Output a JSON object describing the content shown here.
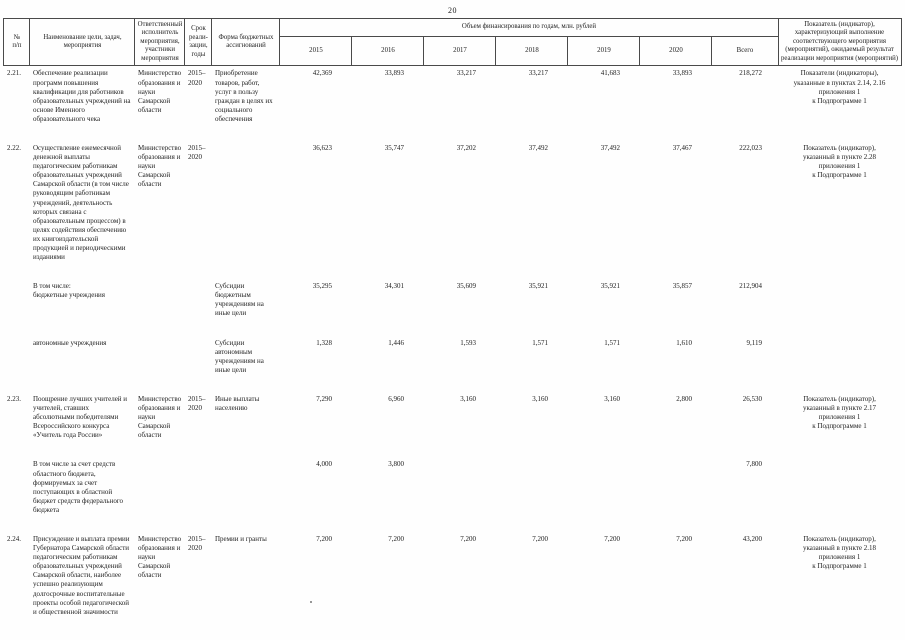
{
  "page_number": "20",
  "header": {
    "num": "№\nп/п",
    "name": "Наименование цели, задач, мероприятия",
    "responsible": "Ответственный исполнитель мероприятия, участники мероприятия",
    "term": "Срок реали-зации, годы",
    "form": "Форма бюджетных ассигнований",
    "funding_group": "Объем финансирования по годам, млн. рублей",
    "years": [
      "2015",
      "2016",
      "2017",
      "2018",
      "2019",
      "2020"
    ],
    "total": "Всего",
    "indicator": "Показатель (индикатор), характеризующий выполнение соответствующего мероприятия (мероприятий), ожидаемый результат реализации мероприятия (мероприятий)"
  },
  "rows": [
    {
      "num": "2.21.",
      "name": "Обеспечение реализации программ повышения квалификации для работников образовательных учреждений на основе Именного образовательного чека",
      "responsible": "Министерство образования и науки Самарской области",
      "term": "2015–\n2020",
      "form": "Приобретение товаров, работ, услуг в пользу граждан в целях их социального обеспечения",
      "values": [
        "42,369",
        "33,893",
        "33,217",
        "33,217",
        "41,683",
        "33,893"
      ],
      "total": "218,272",
      "indicator": "Показатели (индикаторы),\nуказанные в пунктах 2.14, 2.16\nприложения 1\nк Подпрограмме 1"
    },
    {
      "num": "2.22.",
      "name": "Осуществление ежемесячной денежной выплаты педагогическим работникам образовательных учреждений Самарской области (в том числе руководящим работникам учреждений, деятельность которых связана с образовательным процессом) в целях содействия обеспечению их книгоиздательской продукцией и периодическими изданиями",
      "responsible": "Министерство образования и науки Самарской области",
      "term": "2015–\n2020",
      "form": "",
      "values": [
        "36,623",
        "35,747",
        "37,202",
        "37,492",
        "37,492",
        "37,467"
      ],
      "total": "222,023",
      "indicator": "Показатель (индикатор),\nуказанный в пункте 2.28\nприложения 1\nк Подпрограмме 1"
    },
    {
      "num": "",
      "name": "В том числе:\nбюджетные учреждения",
      "responsible": "",
      "term": "",
      "form": "Субсидии бюджетным учреждениям на иные цели",
      "values": [
        "35,295",
        "34,301",
        "35,609",
        "35,921",
        "35,921",
        "35,857"
      ],
      "total": "212,904",
      "indicator": ""
    },
    {
      "num": "",
      "name": "автономные учреждения",
      "responsible": "",
      "term": "",
      "form": "Субсидии автономным учреждениям на иные цели",
      "values": [
        "1,328",
        "1,446",
        "1,593",
        "1,571",
        "1,571",
        "1,610"
      ],
      "total": "9,119",
      "indicator": ""
    },
    {
      "num": "2.23.",
      "name": "Поощрение лучших учителей и учителей, ставших абсолютными победителями Всероссийского конкурса «Учитель года России»",
      "responsible": "Министерство образования и науки Самарской области",
      "term": "2015–\n2020",
      "form": "Иные выплаты населению",
      "values": [
        "7,290",
        "6,960",
        "3,160",
        "3,160",
        "3,160",
        "2,800"
      ],
      "total": "26,530",
      "indicator": "Показатель (индикатор),\nуказанный в пункте 2.17\nприложения 1\nк Подпрограмме 1"
    },
    {
      "num": "",
      "name": "В том числе за счет средств областного бюджета, формируемых за счет поступающих в областной бюджет средств федерального бюджета",
      "responsible": "",
      "term": "",
      "form": "",
      "values": [
        "4,000",
        "3,800",
        "",
        "",
        "",
        ""
      ],
      "total": "7,800",
      "indicator": ""
    },
    {
      "num": "2.24.",
      "name": "Присуждение и выплата премии Губернатора Самарской области педагогическим работникам образовательных учреждений Самарской области, наиболее успешно реализующим долгосрочные воспитательные проекты особой педагогической и общественной значимости",
      "responsible": "Министерство образования и науки Самарской области",
      "term": "2015–\n2020",
      "form": "Премии и гранты",
      "values": [
        "7,200",
        "7,200",
        "7,200",
        "7,200",
        "7,200",
        "7,200"
      ],
      "total": "43,200",
      "indicator": "Показатель (индикатор),\nуказанный в пункте 2.18\nприложения 1\nк Подпрограмме 1"
    }
  ]
}
